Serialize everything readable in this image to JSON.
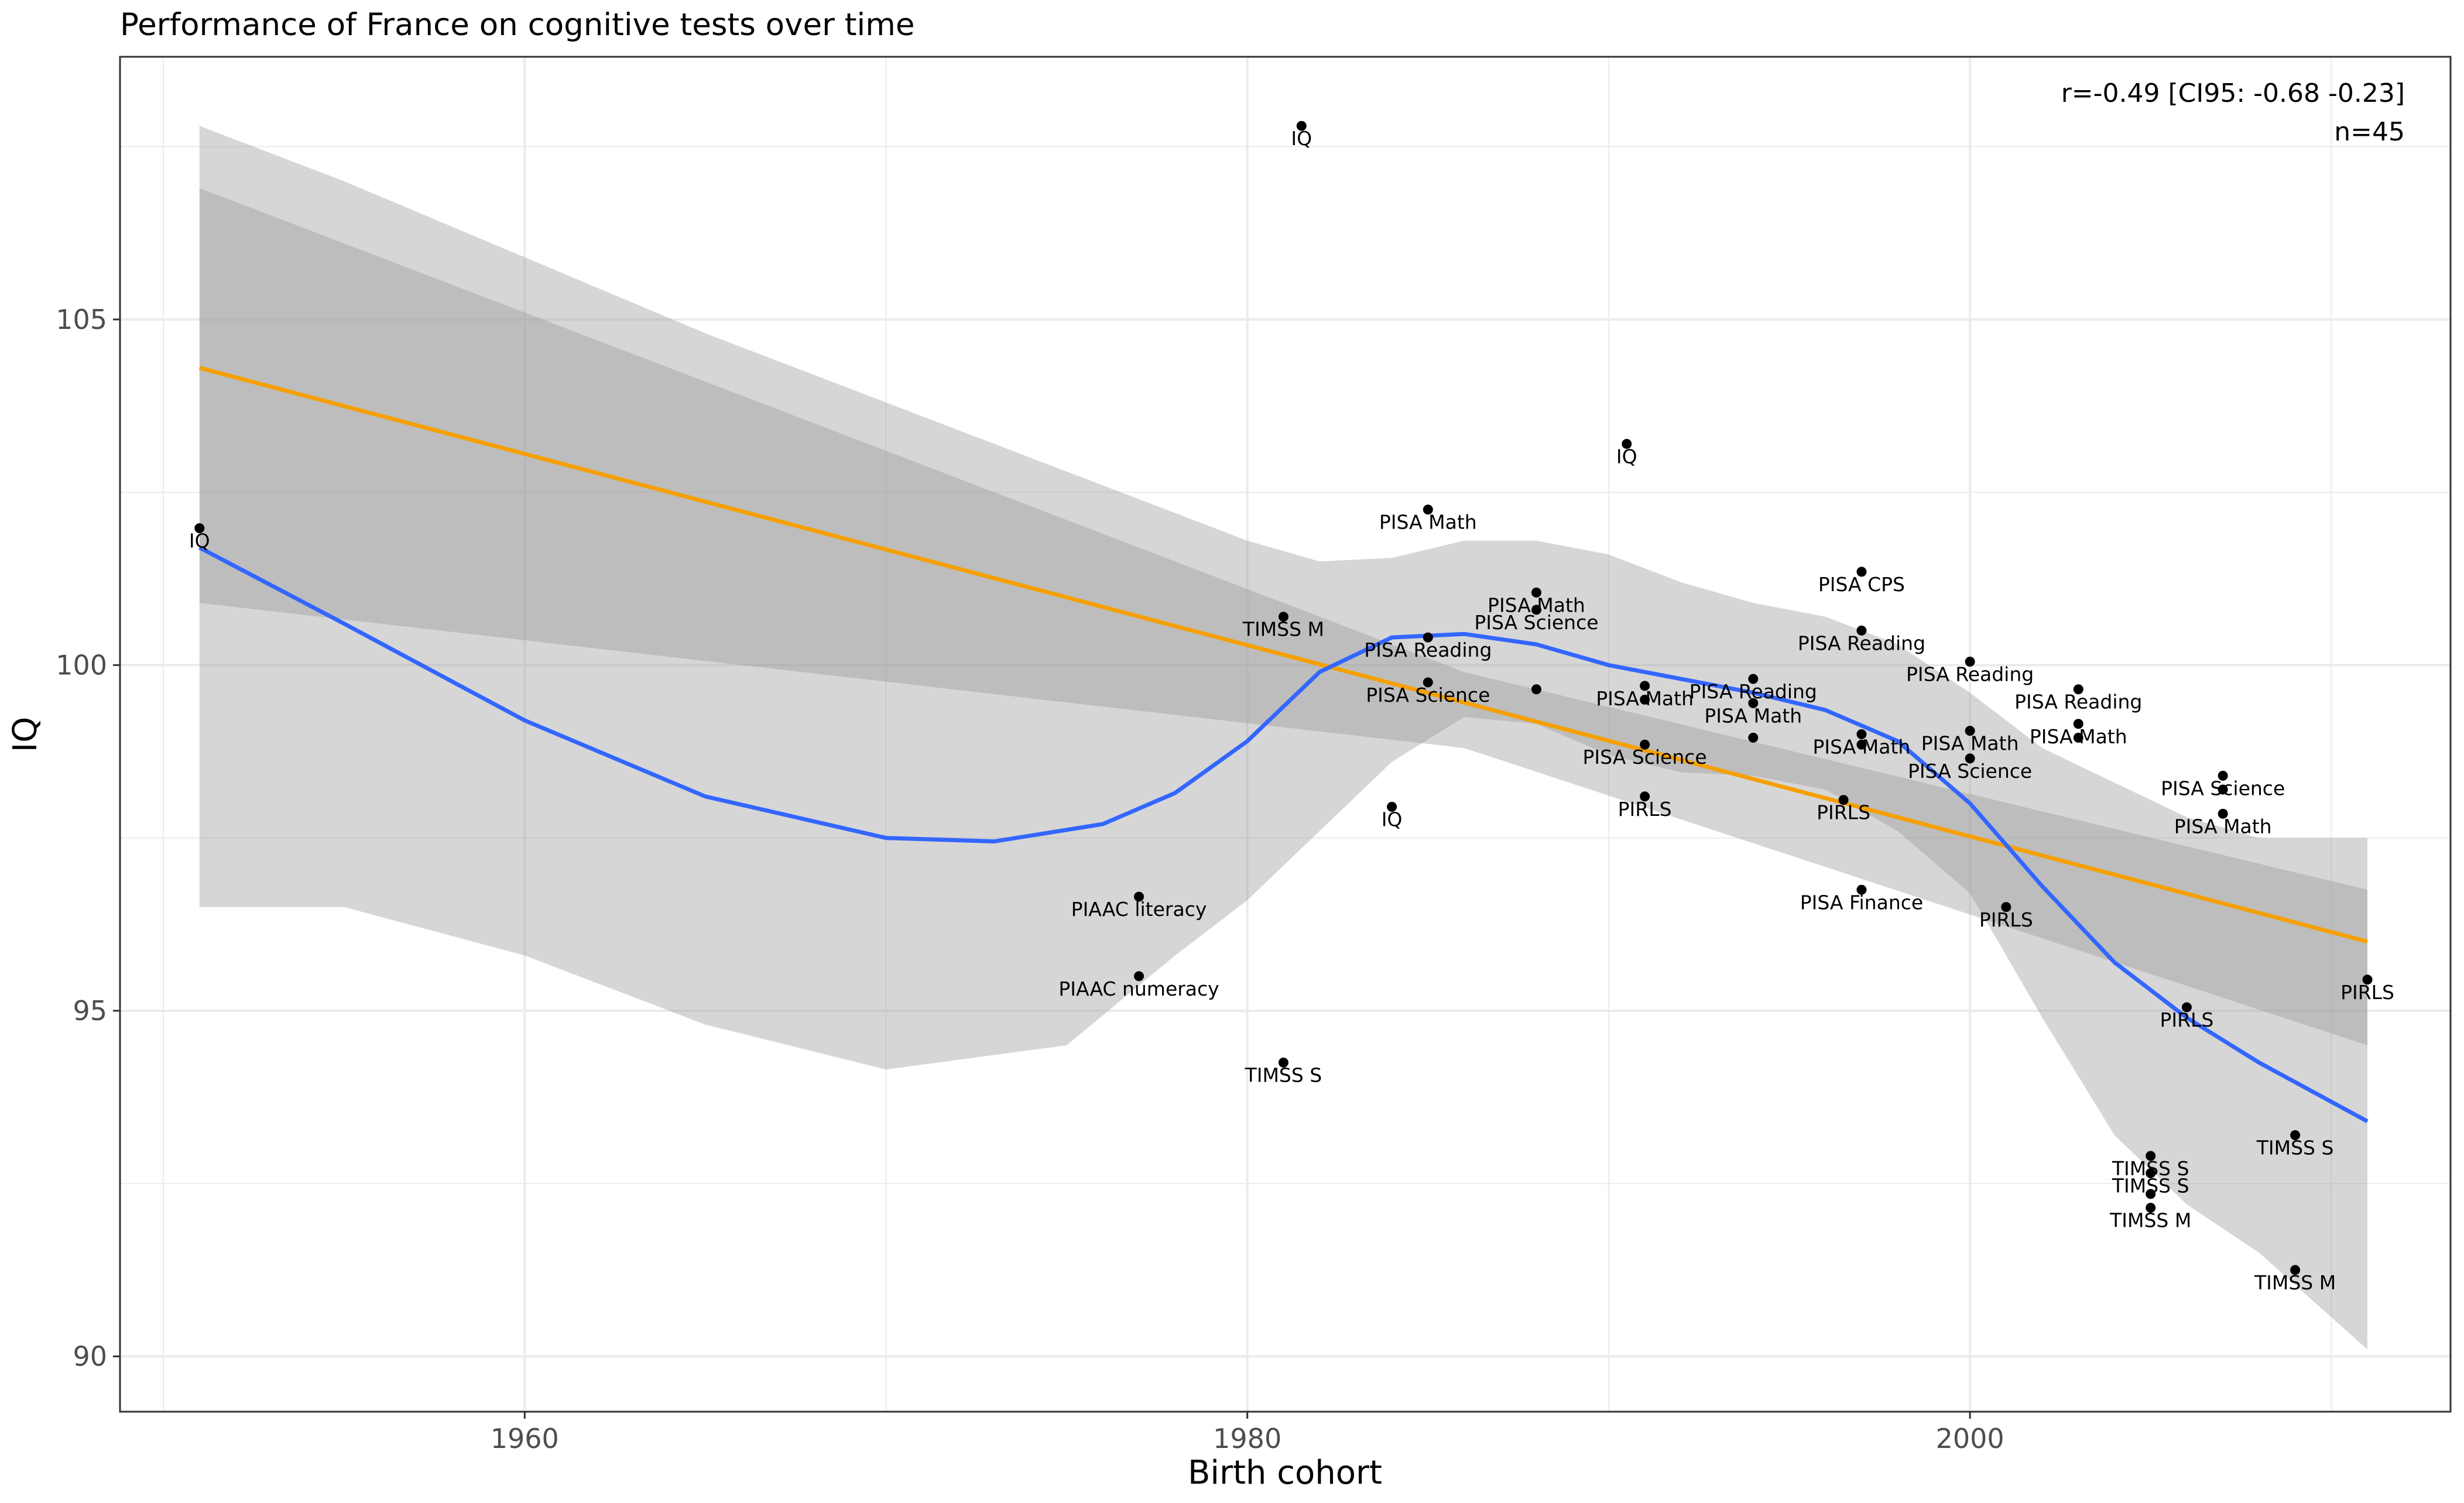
{
  "chart_data": {
    "type": "scatter",
    "title": "Performance of France on cognitive tests over time",
    "xlabel": "Birth cohort",
    "ylabel": "IQ",
    "xlim": [
      1948.8,
      2013.3
    ],
    "ylim": [
      89.2,
      108.8
    ],
    "x_ticks": [
      1960,
      1980,
      2000
    ],
    "y_ticks": [
      90,
      95,
      100,
      105
    ],
    "grid": true,
    "annotation": {
      "stat": "r=-0.49 [CI95: -0.68 -0.23]",
      "n": "n=45"
    },
    "colors": {
      "linear_fit": "#F5A000",
      "loess_fit": "#3366FF",
      "confidence_band": "#999999",
      "points": "#000000",
      "panel_border": "#333333",
      "grid": "#ebebeb"
    },
    "points": [
      {
        "x": 1951.0,
        "y": 101.98,
        "label": "IQ"
      },
      {
        "x": 1981.5,
        "y": 107.8,
        "label": "IQ"
      },
      {
        "x": 1990.5,
        "y": 103.2,
        "label": "IQ"
      },
      {
        "x": 1984.0,
        "y": 97.95,
        "label": "IQ"
      },
      {
        "x": 1985.0,
        "y": 102.25,
        "label": "PISA Math"
      },
      {
        "x": 1981.0,
        "y": 100.7,
        "label": "TIMSS M"
      },
      {
        "x": 1985.0,
        "y": 100.4,
        "label": "PISA Reading"
      },
      {
        "x": 1985.0,
        "y": 99.75,
        "label": "PISA Science"
      },
      {
        "x": 1988.0,
        "y": 101.05,
        "label": "PISA Math"
      },
      {
        "x": 1988.0,
        "y": 100.8,
        "label": "PISA Science"
      },
      {
        "x": 1988.0,
        "y": 99.65,
        "label": ""
      },
      {
        "x": 1991.0,
        "y": 99.7,
        "label": "PISA Math"
      },
      {
        "x": 1991.0,
        "y": 99.5,
        "label": ""
      },
      {
        "x": 1991.0,
        "y": 98.85,
        "label": "PISA Science"
      },
      {
        "x": 1991.0,
        "y": 98.1,
        "label": "PIRLS"
      },
      {
        "x": 1994.0,
        "y": 99.8,
        "label": "PISA Reading"
      },
      {
        "x": 1994.0,
        "y": 99.45,
        "label": "PISA Math"
      },
      {
        "x": 1994.0,
        "y": 98.95,
        "label": ""
      },
      {
        "x": 1997.0,
        "y": 101.35,
        "label": "PISA CPS"
      },
      {
        "x": 1997.0,
        "y": 100.5,
        "label": "PISA Reading"
      },
      {
        "x": 1997.0,
        "y": 99.0,
        "label": "PISA Math"
      },
      {
        "x": 1997.0,
        "y": 98.85,
        "label": ""
      },
      {
        "x": 1996.5,
        "y": 98.05,
        "label": "PIRLS"
      },
      {
        "x": 1997.0,
        "y": 96.75,
        "label": "PISA Finance"
      },
      {
        "x": 2000.0,
        "y": 100.05,
        "label": "PISA Reading"
      },
      {
        "x": 2000.0,
        "y": 99.05,
        "label": "PISA Math"
      },
      {
        "x": 2000.0,
        "y": 98.65,
        "label": "PISA Science"
      },
      {
        "x": 2001.0,
        "y": 96.5,
        "label": "PIRLS"
      },
      {
        "x": 2003.0,
        "y": 99.65,
        "label": "PISA Reading"
      },
      {
        "x": 2003.0,
        "y": 99.15,
        "label": "PISA Math"
      },
      {
        "x": 2003.0,
        "y": 98.95,
        "label": ""
      },
      {
        "x": 2007.0,
        "y": 98.4,
        "label": "PISA Science"
      },
      {
        "x": 2007.0,
        "y": 98.2,
        "label": ""
      },
      {
        "x": 2007.0,
        "y": 97.85,
        "label": "PISA Math"
      },
      {
        "x": 2006.0,
        "y": 95.05,
        "label": "PIRLS"
      },
      {
        "x": 2011.0,
        "y": 95.45,
        "label": "PIRLS"
      },
      {
        "x": 1977.0,
        "y": 96.65,
        "label": "PIAAC literacy"
      },
      {
        "x": 1977.0,
        "y": 95.5,
        "label": "PIAAC numeracy"
      },
      {
        "x": 1981.0,
        "y": 94.25,
        "label": "TIMSS S"
      },
      {
        "x": 2005.0,
        "y": 92.9,
        "label": "TIMSS S"
      },
      {
        "x": 2005.0,
        "y": 92.65,
        "label": "TIMSS S"
      },
      {
        "x": 2005.0,
        "y": 92.35,
        "label": ""
      },
      {
        "x": 2005.0,
        "y": 92.15,
        "label": "TIMSS M"
      },
      {
        "x": 2009.0,
        "y": 93.2,
        "label": "TIMSS S"
      },
      {
        "x": 2009.0,
        "y": 91.25,
        "label": "TIMSS M"
      }
    ],
    "linear_fit": {
      "x": [
        1951.0,
        2011.0
      ],
      "y": [
        104.3,
        96.0
      ]
    },
    "linear_band": {
      "x": [
        1951.0,
        1986.0,
        2011.0
      ],
      "upper": [
        106.9,
        99.9,
        96.75
      ],
      "lower": [
        100.9,
        98.8,
        94.5
      ]
    },
    "loess_fit": {
      "x": [
        1951,
        1955,
        1960,
        1965,
        1970,
        1973,
        1976,
        1978,
        1980,
        1982,
        1984,
        1986,
        1988,
        1990,
        1992,
        1994,
        1996,
        1998,
        2000,
        2002,
        2004,
        2006,
        2008,
        2011
      ],
      "y": [
        101.7,
        100.6,
        99.2,
        98.1,
        97.5,
        97.45,
        97.7,
        98.15,
        98.9,
        99.9,
        100.4,
        100.45,
        100.3,
        100.0,
        99.8,
        99.6,
        99.35,
        98.9,
        98.0,
        96.8,
        95.7,
        94.9,
        94.25,
        93.4
      ]
    },
    "loess_band": {
      "x": [
        1951,
        1955,
        1960,
        1965,
        1970,
        1975,
        1978,
        1980,
        1982,
        1984,
        1986,
        1988,
        1990,
        1992,
        1994,
        1996,
        1998,
        2000,
        2002,
        2004,
        2006,
        2008,
        2011
      ],
      "upper": [
        107.8,
        107.0,
        105.9,
        104.8,
        103.8,
        102.8,
        102.2,
        101.8,
        101.5,
        101.55,
        101.8,
        101.8,
        101.6,
        101.2,
        100.9,
        100.7,
        100.3,
        99.6,
        98.8,
        98.3,
        97.8,
        97.5,
        97.5
      ],
      "lower": [
        96.5,
        96.5,
        95.8,
        94.8,
        94.15,
        94.5,
        95.8,
        96.6,
        97.6,
        98.6,
        99.25,
        99.15,
        98.7,
        98.45,
        98.4,
        98.2,
        97.6,
        96.7,
        94.9,
        93.2,
        92.2,
        91.5,
        90.1
      ]
    }
  }
}
